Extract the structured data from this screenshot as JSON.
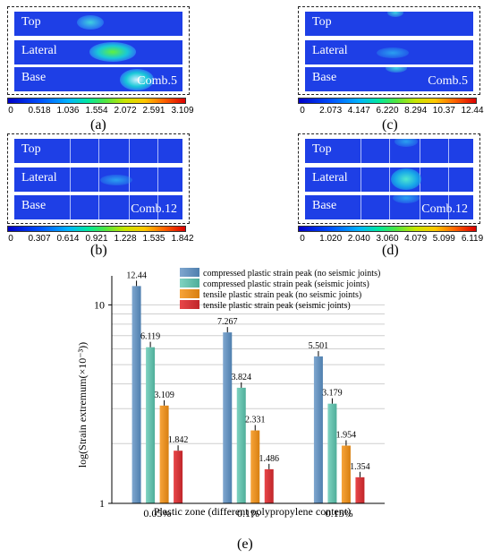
{
  "panels": {
    "a": {
      "label": "(a)",
      "rows": [
        "Top",
        "Lateral",
        "Base"
      ],
      "comb": "Comb.5",
      "scale": [
        "0",
        "0.518",
        "1.036",
        "1.554",
        "2.072",
        "2.591",
        "3.109"
      ]
    },
    "b": {
      "label": "(b)",
      "rows": [
        "Top",
        "Lateral",
        "Base"
      ],
      "comb": "Comb.12",
      "scale": [
        "0",
        "0.307",
        "0.614",
        "0.921",
        "1.228",
        "1.535",
        "1.842"
      ]
    },
    "c": {
      "label": "(c)",
      "rows": [
        "Top",
        "Lateral",
        "Base"
      ],
      "comb": "Comb.5",
      "scale": [
        "0",
        "2.073",
        "4.147",
        "6.220",
        "8.294",
        "10.37",
        "12.44"
      ]
    },
    "d": {
      "label": "(d)",
      "rows": [
        "Top",
        "Lateral",
        "Base"
      ],
      "comb": "Comb.12",
      "scale": [
        "0",
        "1.020",
        "2.040",
        "3.060",
        "4.079",
        "5.099",
        "6.119"
      ]
    },
    "e": {
      "label": "(e)"
    }
  },
  "chart_data": {
    "type": "bar",
    "categories": [
      "0.05%",
      "0.1%",
      "0.15%"
    ],
    "xlabel": "Plastic zone (different polypropylene content)",
    "ylabel": "log(Strain extremum(×10⁻³))",
    "yscale": "log",
    "ylim": [
      1,
      14
    ],
    "ytick_labels": [
      "1",
      "10"
    ],
    "legend_position": "top-right",
    "series": [
      {
        "name": "compressed plastic strain peak (no seismic joints)",
        "values": [
          12.44,
          7.267,
          5.501
        ],
        "labels": [
          "12.44",
          "7.267",
          "5.501"
        ]
      },
      {
        "name": "compressed plastic strain peak (seismic joints)",
        "values": [
          6.119,
          3.824,
          3.179
        ],
        "labels": [
          "6.119",
          "3.824",
          "3.179"
        ]
      },
      {
        "name": "tensile plastic strain peak (no seismic joints)",
        "values": [
          3.109,
          2.331,
          1.954
        ],
        "labels": [
          "3.109",
          "2.331",
          "1.954"
        ]
      },
      {
        "name": "tensile plastic strain peak (seismic joints)",
        "values": [
          1.842,
          1.486,
          1.354
        ],
        "labels": [
          "1.842",
          "1.486",
          "1.354"
        ]
      }
    ],
    "colors": [
      "#7fa7cf",
      "#7fd3c1",
      "#f7a43a",
      "#e8474a"
    ]
  }
}
